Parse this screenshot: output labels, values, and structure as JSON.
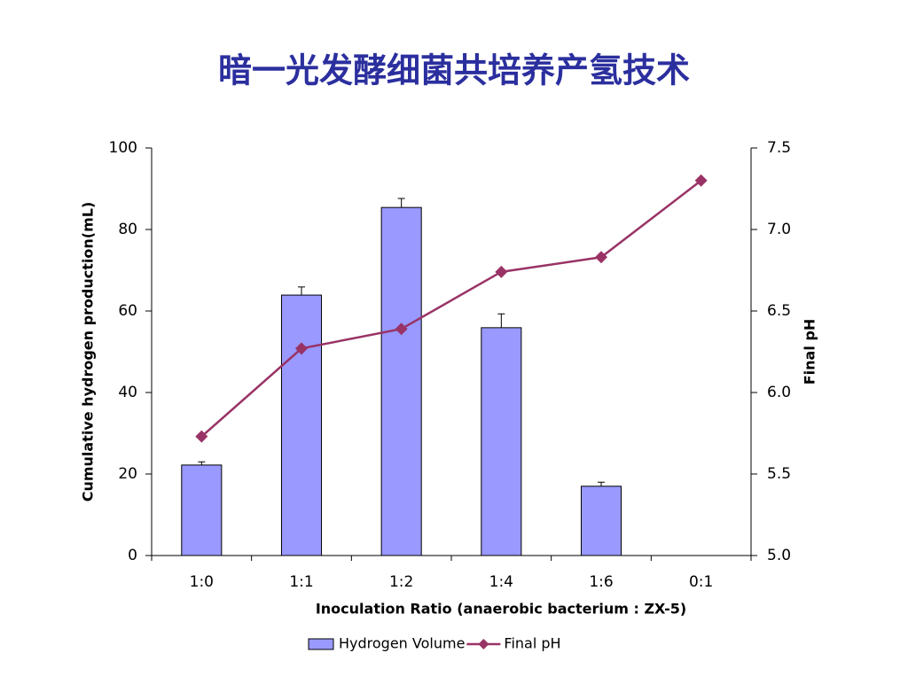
{
  "chart_data": {
    "type": "bar",
    "title": "暗一光发酵细菌共培养产氢技术",
    "x_label": "Inoculation Ratio (anaerobic bacterium : ZX-5)",
    "y_label": "Cumulative hydrogen production(mL)",
    "y2_label": "Final pH",
    "categories": [
      "1:0",
      "1:1",
      "1:2",
      "1:4",
      "1:6",
      "0:1"
    ],
    "series": [
      {
        "name": "Hydrogen Volume",
        "type": "bar",
        "color": "#9999ff",
        "values": [
          22.2,
          63.9,
          85.4,
          55.9,
          17.0,
          null
        ],
        "errors": [
          0.8,
          2.0,
          2.2,
          3.4,
          1.0,
          null
        ]
      },
      {
        "name": "Final pH",
        "type": "line",
        "axis": "y2",
        "color": "#993366",
        "values": [
          5.73,
          6.27,
          6.39,
          6.74,
          6.83,
          7.3
        ]
      }
    ],
    "ylim": [
      0,
      100
    ],
    "yticks": [
      0,
      20,
      40,
      60,
      80,
      100
    ],
    "y2lim": [
      5.0,
      7.5
    ],
    "y2ticks": [
      {
        "value": 5.0,
        "label": "5.0"
      },
      {
        "value": 5.5,
        "label": "5.5"
      },
      {
        "value": 6.0,
        "label": "6.0"
      },
      {
        "value": 6.5,
        "label": "6.5"
      },
      {
        "value": 7.0,
        "label": "7.0"
      },
      {
        "value": 7.5,
        "label": "7.5"
      }
    ],
    "legend": "bottom",
    "title_color": "#2b2f9e"
  }
}
